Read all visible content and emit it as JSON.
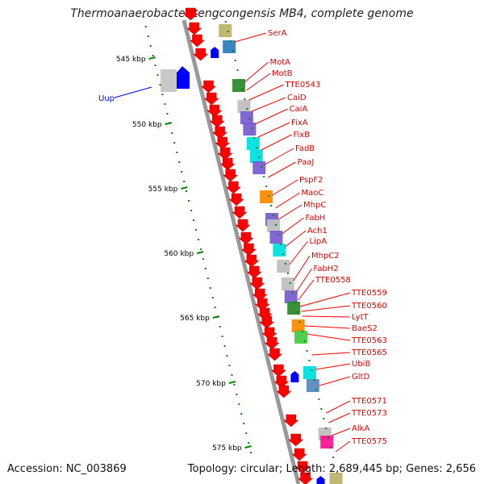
{
  "title": "Thermoanaerobacter tengcongensis MB4, complete genome",
  "footer": {
    "accession": "Accession: NC_003869",
    "stats": "Topology: circular; Length: 2,689,445 bp; Genes: 2,656"
  },
  "colors": {
    "backbone": "#999999",
    "feature_forward": "#ff0000",
    "feature_reverse": "#0000ff",
    "label_line": "#ff0000",
    "tick": "#008800",
    "uup_label": "#0000ee"
  },
  "kbp_ticks": [
    "545 kbp",
    "550 kbp",
    "555 kbp",
    "560 kbp",
    "565 kbp",
    "570 kbp",
    "575 kbp"
  ],
  "gene_labels": [
    "SerA",
    "MotA",
    "MotB",
    "TTE0543",
    "CaiD",
    "CaiA",
    "FixA",
    "FixB",
    "FadB",
    "PaaJ",
    "PspF2",
    "MaoC",
    "MhpC",
    "FabH",
    "Ach1",
    "LipA",
    "MhpC2",
    "FabH2",
    "TTE0558",
    "TTE0559",
    "TTE0560",
    "LytT",
    "BaeS2",
    "TTE0563",
    "TTE0565",
    "UbiB",
    "GltD",
    "TTE0571",
    "TTE0573",
    "AlkA",
    "TTE0575"
  ],
  "left_label": "Uup"
}
